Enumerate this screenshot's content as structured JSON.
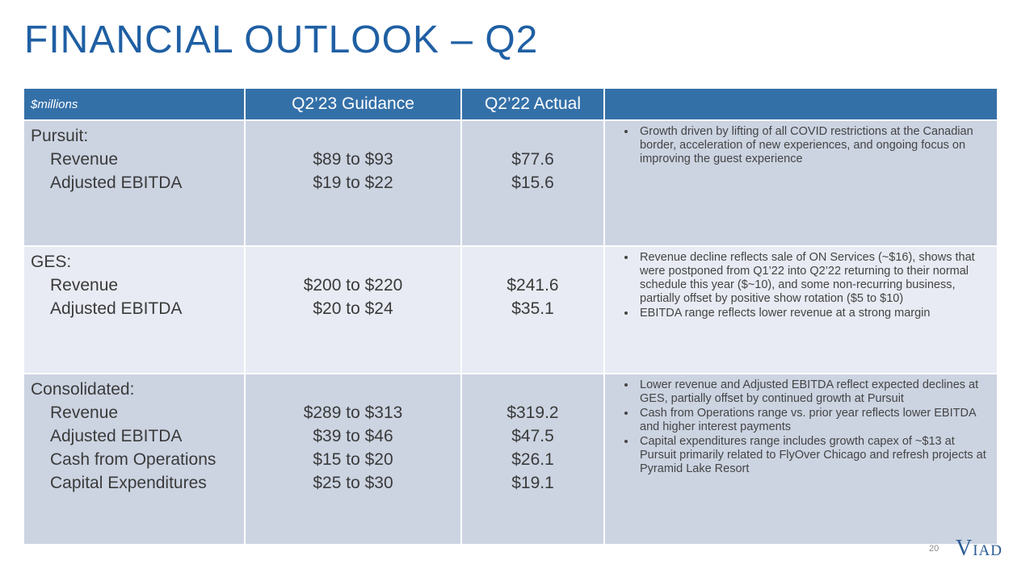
{
  "title": "FINANCIAL OUTLOOK – Q2",
  "table": {
    "headers": [
      "$millions",
      "Q2’23 Guidance",
      "Q2’22 Actual",
      ""
    ],
    "rows": [
      {
        "segment": "Pursuit:",
        "metrics": [
          "Revenue",
          "Adjusted EBITDA"
        ],
        "guidance": [
          "$89 to $93",
          "$19 to $22"
        ],
        "actual": [
          "$77.6",
          "$15.6"
        ],
        "notes": [
          "Growth driven by lifting of all COVID restrictions at the Canadian border, acceleration of new experiences, and ongoing focus on improving the guest experience"
        ]
      },
      {
        "segment": "GES:",
        "metrics": [
          "Revenue",
          "Adjusted EBITDA"
        ],
        "guidance": [
          "$200 to $220",
          "$20 to $24"
        ],
        "actual": [
          "$241.6",
          "$35.1"
        ],
        "notes": [
          "Revenue decline reflects sale of ON Services (~$16), shows that were postponed from Q1’22 into Q2’22 returning to their normal schedule this year ($~10), and some non-recurring business, partially offset by positive show rotation ($5 to $10)",
          "EBITDA range reflects lower revenue at a strong margin"
        ]
      },
      {
        "segment": "Consolidated:",
        "metrics": [
          "Revenue",
          "Adjusted EBITDA",
          "Cash from Operations",
          "Capital Expenditures"
        ],
        "guidance": [
          "$289 to $313",
          "$39 to $46",
          "$15 to $20",
          "$25 to $30"
        ],
        "actual": [
          "$319.2",
          "$47.5",
          "$26.1",
          "$19.1"
        ],
        "notes": [
          "Lower revenue and Adjusted EBITDA reflect expected declines at GES, partially offset by continued growth at Pursuit",
          "Cash from Operations range vs. prior year reflects lower EBITDA and higher interest payments",
          "Capital expenditures range includes growth capex of ~$13 at Pursuit primarily related to FlyOver Chicago and refresh projects at Pyramid Lake Resort"
        ]
      }
    ]
  },
  "footer": {
    "page_number": "20",
    "logo_big_v": "V",
    "logo_rest": "IAD"
  },
  "colors": {
    "title": "#1f5fa3",
    "header_bg": "#3470a8",
    "row_dark": "#ccd4e2",
    "row_light": "#e8ebf3"
  }
}
